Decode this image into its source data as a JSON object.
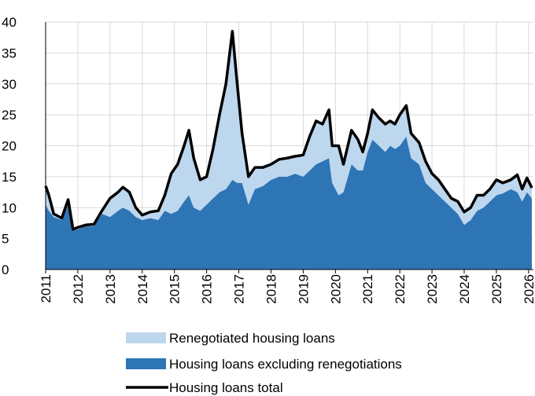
{
  "chart_data": {
    "type": "stacked-area",
    "x": [
      2011.0,
      2011.1,
      2011.25,
      2011.5,
      2011.7,
      2011.85,
      2012.0,
      2012.25,
      2012.5,
      2012.75,
      2013.0,
      2013.25,
      2013.4,
      2013.6,
      2013.8,
      2014.0,
      2014.25,
      2014.5,
      2014.7,
      2014.9,
      2015.1,
      2015.3,
      2015.45,
      2015.6,
      2015.8,
      2016.0,
      2016.2,
      2016.4,
      2016.6,
      2016.8,
      2016.95,
      2017.1,
      2017.3,
      2017.5,
      2017.75,
      2018.0,
      2018.25,
      2018.5,
      2018.75,
      2019.0,
      2019.2,
      2019.4,
      2019.6,
      2019.8,
      2019.9,
      2020.1,
      2020.25,
      2020.5,
      2020.7,
      2020.85,
      2021.0,
      2021.15,
      2021.35,
      2021.55,
      2021.7,
      2021.85,
      2022.0,
      2022.2,
      2022.35,
      2022.6,
      2022.8,
      2023.0,
      2023.2,
      2023.4,
      2023.6,
      2023.8,
      2024.0,
      2024.2,
      2024.4,
      2024.6,
      2024.8,
      2025.0,
      2025.2,
      2025.45,
      2025.65,
      2025.8,
      2025.95,
      2026.1
    ],
    "series": [
      {
        "name": "Housing loans excluding renegotiations",
        "color": "#2e75b6",
        "stack": true,
        "values": [
          10.5,
          9.5,
          8.5,
          8,
          10.5,
          6.3,
          6.5,
          7,
          7,
          9,
          8.5,
          9.5,
          10,
          9.5,
          8.5,
          8,
          8.3,
          8,
          9.5,
          9,
          9.5,
          11,
          12,
          10,
          9.5,
          10.5,
          11.5,
          12.5,
          13,
          14.5,
          14,
          14,
          10.5,
          13,
          13.5,
          14.5,
          15,
          15,
          15.5,
          15,
          16,
          17,
          17.5,
          18,
          14,
          12,
          12.5,
          17,
          16,
          16,
          19,
          21,
          20,
          19,
          20,
          19.5,
          20,
          21.5,
          18,
          17,
          14,
          13,
          12,
          11,
          10,
          9,
          7.2,
          8,
          9.5,
          10,
          11,
          12,
          12.3,
          13,
          12.5,
          11,
          12.5,
          11.5
        ]
      },
      {
        "name": "Renegotiated housing loans",
        "color": "#bdd7ee",
        "stack": true,
        "values": [
          3,
          2.5,
          0.5,
          0.3,
          0.8,
          0.2,
          0.3,
          0.2,
          0.3,
          0.5,
          3,
          3,
          3.3,
          3,
          1.5,
          0.8,
          1,
          1.5,
          2.5,
          6.5,
          7.5,
          9,
          10.5,
          8,
          5,
          4.5,
          8,
          12.5,
          17,
          24,
          16,
          8,
          4.5,
          3.5,
          3,
          2.5,
          2.8,
          3,
          2.8,
          3.5,
          5.5,
          7,
          6,
          7.8,
          6,
          8,
          4.5,
          5.5,
          5,
          3,
          3,
          4.8,
          4.5,
          4.5,
          4,
          4,
          5,
          5,
          4,
          3.5,
          3.5,
          2.5,
          2.5,
          2,
          1.5,
          2,
          2.1,
          2,
          2.5,
          2,
          2,
          2.5,
          1.7,
          1.5,
          2.8,
          2,
          2.3,
          1.7
        ]
      },
      {
        "name": "Housing loans total",
        "color": "#000000",
        "stack": false,
        "values": [
          13.5,
          12,
          9,
          8.3,
          11.3,
          6.5,
          6.8,
          7.2,
          7.3,
          9.5,
          11.5,
          12.5,
          13.3,
          12.5,
          10,
          8.8,
          9.3,
          9.5,
          12,
          15.5,
          17,
          20,
          22.5,
          18,
          14.5,
          15,
          19.5,
          25,
          30,
          38.5,
          30,
          22,
          15,
          16.5,
          16.5,
          17,
          17.8,
          18,
          18.3,
          18.5,
          21.5,
          24,
          23.5,
          25.8,
          20,
          20,
          17,
          22.5,
          21,
          19,
          22,
          25.8,
          24.5,
          23.5,
          24,
          23.5,
          25,
          26.5,
          22,
          20.5,
          17.5,
          15.5,
          14.5,
          13,
          11.5,
          11,
          9.3,
          10,
          12,
          12,
          13,
          14.5,
          14,
          14.5,
          15.3,
          13,
          14.8,
          13.2
        ]
      }
    ],
    "xlim": [
      2011,
      2026.15
    ],
    "xticks": [
      2011,
      2012,
      2013,
      2014,
      2015,
      2016,
      2017,
      2018,
      2019,
      2020,
      2021,
      2022,
      2023,
      2024,
      2025,
      2026
    ],
    "ylim": [
      0,
      40
    ],
    "yticks": [
      0,
      5,
      10,
      15,
      20,
      25,
      30,
      35,
      40
    ],
    "grid": true
  }
}
